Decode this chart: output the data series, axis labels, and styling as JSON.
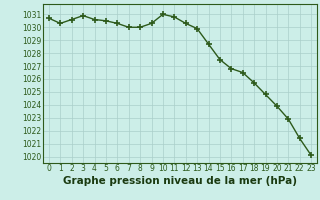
{
  "x": [
    0,
    1,
    2,
    3,
    4,
    5,
    6,
    7,
    8,
    9,
    10,
    11,
    12,
    13,
    14,
    15,
    16,
    17,
    18,
    19,
    20,
    21,
    22,
    23
  ],
  "y": [
    1030.7,
    1030.3,
    1030.6,
    1030.9,
    1030.6,
    1030.5,
    1030.3,
    1030.0,
    1030.0,
    1030.3,
    1031.0,
    1030.8,
    1030.3,
    1029.9,
    1028.7,
    1027.5,
    1026.8,
    1026.5,
    1025.7,
    1024.8,
    1023.9,
    1022.9,
    1021.4,
    1020.1
  ],
  "line_color": "#2d5a1b",
  "marker": "+",
  "marker_size": 4,
  "marker_color": "#2d5a1b",
  "bg_color": "#cceee8",
  "grid_color": "#aacfca",
  "xlabel": "Graphe pression niveau de la mer (hPa)",
  "xlabel_fontsize": 7.5,
  "xlabel_color": "#1a3a10",
  "ylim": [
    1019.5,
    1031.8
  ],
  "yticks": [
    1020,
    1021,
    1022,
    1023,
    1024,
    1025,
    1026,
    1027,
    1028,
    1029,
    1030,
    1031
  ],
  "xticks": [
    0,
    1,
    2,
    3,
    4,
    5,
    6,
    7,
    8,
    9,
    10,
    11,
    12,
    13,
    14,
    15,
    16,
    17,
    18,
    19,
    20,
    21,
    22,
    23
  ],
  "tick_color": "#2d5a1b",
  "tick_fontsize": 5.5,
  "spine_color": "#2d5a1b",
  "linewidth": 1.0
}
